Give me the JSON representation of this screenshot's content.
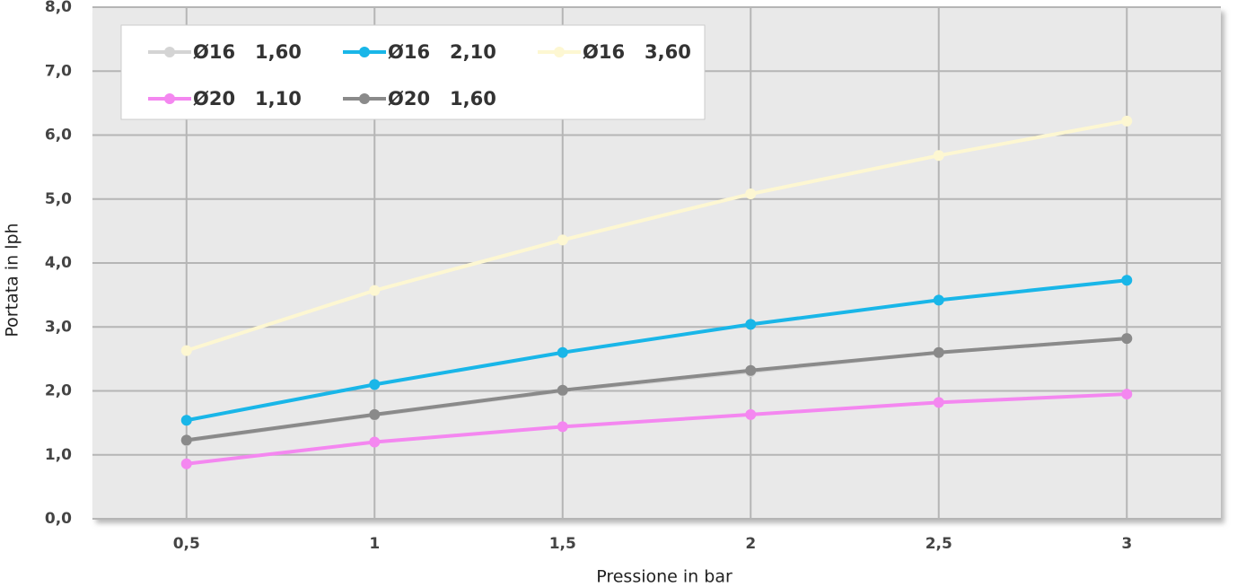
{
  "chart_data": {
    "type": "line",
    "x_label": "Pressione in bar",
    "y_label": "Portata in lph",
    "categories": [
      "0,5",
      "1",
      "1,5",
      "2",
      "2,5",
      "3"
    ],
    "ylim": [
      0,
      8
    ],
    "yticks": [
      {
        "value": 0,
        "label": "0,0"
      },
      {
        "value": 1,
        "label": "1,0"
      },
      {
        "value": 2,
        "label": "2,0"
      },
      {
        "value": 3,
        "label": "3,0"
      },
      {
        "value": 4,
        "label": "4,0"
      },
      {
        "value": 5,
        "label": "5,0"
      },
      {
        "value": 6,
        "label": "6,0"
      },
      {
        "value": 7,
        "label": "7,0"
      },
      {
        "value": 8,
        "label": "8,0"
      }
    ],
    "grid": true,
    "series": [
      {
        "name": "Ø16   1,60",
        "color": "#d4d4d4",
        "values": [
          1.22,
          1.62,
          2.0,
          2.3,
          2.6,
          2.82
        ]
      },
      {
        "name": "Ø16   2,10",
        "color": "#19b6e8",
        "values": [
          1.54,
          2.1,
          2.6,
          3.04,
          3.42,
          3.73
        ]
      },
      {
        "name": "Ø16   3,60",
        "color": "#fdf7d2",
        "values": [
          2.63,
          3.57,
          4.36,
          5.08,
          5.68,
          6.22
        ]
      },
      {
        "name": "Ø20   1,10",
        "color": "#f487f0",
        "values": [
          0.86,
          1.2,
          1.44,
          1.63,
          1.82,
          1.95
        ]
      },
      {
        "name": "Ø20   1,60",
        "color": "#8a8a8a",
        "values": [
          1.23,
          1.63,
          2.01,
          2.32,
          2.6,
          2.82
        ]
      }
    ]
  }
}
